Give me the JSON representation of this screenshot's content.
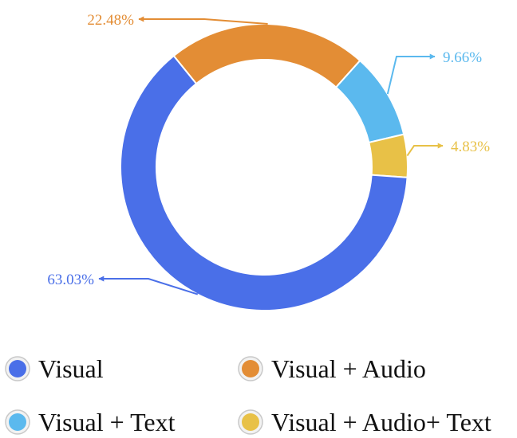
{
  "chart_data": {
    "type": "pie",
    "variant": "donut",
    "title": "",
    "categories": [
      "Visual",
      "Visual + Audio",
      "Visual + Text",
      "Visual + Audio+ Text"
    ],
    "values": [
      63.03,
      22.48,
      9.66,
      4.83
    ],
    "value_labels": [
      "63.03%",
      "22.48%",
      "9.66%",
      "4.83%"
    ],
    "colors": [
      "#4a6fe8",
      "#e38d35",
      "#5bb9ee",
      "#e8c147"
    ],
    "legend": {
      "placement": "bottom",
      "columns": 2,
      "marker": "circle",
      "items": [
        {
          "label": "Visual",
          "color": "#4a6fe8"
        },
        {
          "label": "Visual + Audio",
          "color": "#e38d35"
        },
        {
          "label": "Visual + Text",
          "color": "#5bb9ee"
        },
        {
          "label": "Visual + Audio+ Text",
          "color": "#e8c147"
        }
      ]
    }
  }
}
